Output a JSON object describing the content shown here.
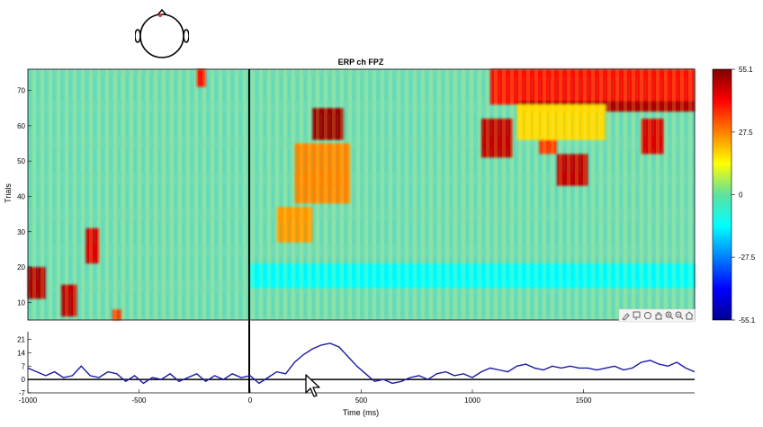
{
  "figure": {
    "head_icon": "scalp-head-icon",
    "toolbar_icons": [
      "brush-icon",
      "data-tips-icon",
      "rotate-icon",
      "pan-hand-icon",
      "zoom-in-icon",
      "zoom-out-icon",
      "home-icon"
    ],
    "cursor_icon": "mouse-pointer-icon"
  },
  "chart_data": [
    {
      "type": "heatmap",
      "title": "ERP ch FPZ",
      "xlabel": "",
      "ylabel": "Trials",
      "xlim": [
        -1000,
        2000
      ],
      "ylim": [
        5,
        76
      ],
      "yticks": [
        10,
        20,
        30,
        40,
        50,
        60,
        70
      ],
      "event_line_x": 0,
      "colormap": "jet",
      "colorbar": {
        "clim": [
          -55.1,
          55.1
        ],
        "ticks": [
          "55.1",
          "27.5",
          "0",
          "-27.5",
          "-55.1"
        ]
      },
      "regions": [
        {
          "x": [
            -1000,
            -920
          ],
          "y": [
            11,
            20
          ],
          "value": 50
        },
        {
          "x": [
            -850,
            -780
          ],
          "y": [
            6,
            15
          ],
          "value": 48
        },
        {
          "x": [
            -740,
            -680
          ],
          "y": [
            21,
            31
          ],
          "value": 45
        },
        {
          "x": [
            -620,
            -580
          ],
          "y": [
            5,
            8
          ],
          "value": 35
        },
        {
          "x": [
            -240,
            -200
          ],
          "y": [
            71,
            76
          ],
          "value": 40
        },
        {
          "x": [
            120,
            280
          ],
          "y": [
            27,
            37
          ],
          "value": 25
        },
        {
          "x": [
            200,
            450
          ],
          "y": [
            38,
            55
          ],
          "value": 27
        },
        {
          "x": [
            280,
            420
          ],
          "y": [
            56,
            65
          ],
          "value": 52
        },
        {
          "x": [
            1040,
            1180
          ],
          "y": [
            51,
            62
          ],
          "value": 48
        },
        {
          "x": [
            1380,
            1520
          ],
          "y": [
            43,
            52
          ],
          "value": 48
        },
        {
          "x": [
            1300,
            1380
          ],
          "y": [
            52,
            61
          ],
          "value": 35
        },
        {
          "x": [
            1760,
            1860
          ],
          "y": [
            52,
            62
          ],
          "value": 45
        },
        {
          "x": [
            1080,
            2000
          ],
          "y": [
            66,
            76
          ],
          "value": 40
        },
        {
          "x": [
            1200,
            2000
          ],
          "y": [
            64,
            67
          ],
          "value": 50
        },
        {
          "x": [
            1200,
            1600
          ],
          "y": [
            56,
            66
          ],
          "value": 18
        },
        {
          "x": [
            0,
            2000
          ],
          "y": [
            14,
            21
          ],
          "value": -14
        }
      ]
    },
    {
      "type": "line",
      "title": "",
      "xlabel": "Time (ms)",
      "ylabel": "",
      "xlim": [
        -1000,
        2000
      ],
      "ylim": [
        -7,
        25
      ],
      "xticks": [
        "-1000",
        "-500",
        "0",
        "500",
        "1000",
        "1500"
      ],
      "xtick_values": [
        -1000,
        -500,
        0,
        500,
        1000,
        1500
      ],
      "yticks": [
        "21",
        "14",
        "7",
        "0",
        "-7"
      ],
      "ytick_values": [
        21,
        14,
        7,
        0,
        -7
      ],
      "baseline_y": 0,
      "series": [
        {
          "color": "#1a1aa6",
          "x": [
            -1000,
            -960,
            -920,
            -880,
            -840,
            -800,
            -760,
            -720,
            -680,
            -640,
            -600,
            -560,
            -520,
            -480,
            -440,
            -400,
            -360,
            -320,
            -280,
            -240,
            -200,
            -160,
            -120,
            -80,
            -40,
            0,
            40,
            80,
            120,
            160,
            200,
            240,
            280,
            320,
            360,
            400,
            440,
            480,
            520,
            560,
            600,
            640,
            680,
            720,
            760,
            800,
            840,
            880,
            920,
            960,
            1000,
            1040,
            1080,
            1120,
            1160,
            1200,
            1240,
            1280,
            1320,
            1360,
            1400,
            1440,
            1480,
            1520,
            1560,
            1600,
            1640,
            1680,
            1720,
            1760,
            1800,
            1840,
            1880,
            1920,
            1960,
            2000
          ],
          "values": [
            6,
            4,
            2,
            4,
            1,
            2,
            7,
            2,
            1,
            4,
            3,
            -1,
            2,
            -2,
            1,
            0,
            3,
            -1,
            1,
            3,
            -1,
            2,
            0,
            3,
            1,
            2,
            -2,
            1,
            4,
            3,
            9,
            13,
            16,
            18,
            19,
            17,
            12,
            7,
            3,
            -1,
            0,
            -2,
            -1,
            1,
            2,
            0,
            3,
            4,
            2,
            3,
            1,
            4,
            6,
            5,
            4,
            7,
            8,
            6,
            5,
            7,
            6,
            7,
            6,
            6,
            5,
            6,
            7,
            5,
            6,
            9,
            10,
            8,
            7,
            9,
            6,
            4
          ]
        }
      ]
    }
  ]
}
